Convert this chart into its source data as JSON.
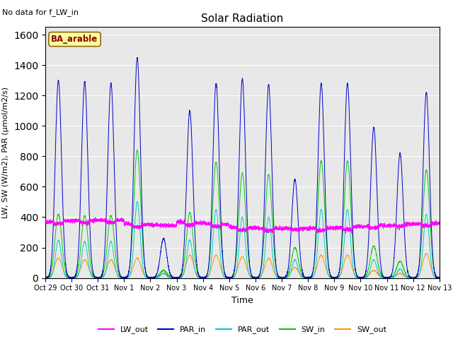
{
  "title": "Solar Radiation",
  "subtitle": "No data for f_LW_in",
  "site_label": "BA_arable",
  "xlabel": "Time",
  "ylabel": "LW, SW (W/m2), PAR (μmol/m2/s)",
  "ylim": [
    0,
    1650
  ],
  "yticks": [
    0,
    200,
    400,
    600,
    800,
    1000,
    1200,
    1400,
    1600
  ],
  "colors": {
    "LW_out": "#ff00ff",
    "PAR_in": "#0000cc",
    "PAR_out": "#00cccc",
    "SW_in": "#00cc00",
    "SW_out": "#ff9900"
  },
  "background_color": "#e8e8e8",
  "num_days": 15,
  "num_points_per_day": 288,
  "day_labels": [
    "Oct 29",
    "Oct 30",
    "Oct 31",
    "Nov 1",
    "Nov 2",
    "Nov 3",
    "Nov 4",
    "Nov 5",
    "Nov 6",
    "Nov 7",
    "Nov 8",
    "Nov 9",
    "Nov 10",
    "Nov 11",
    "Nov 12",
    "Nov 13"
  ],
  "PAR_in_peaks": [
    1300,
    1290,
    1280,
    1450,
    260,
    1100,
    1280,
    1310,
    1270,
    650,
    1280,
    1280,
    990,
    820,
    1220,
    0
  ],
  "SW_in_peaks": [
    420,
    410,
    410,
    840,
    50,
    430,
    760,
    690,
    680,
    200,
    770,
    770,
    210,
    110,
    710,
    0
  ],
  "PAR_out_peaks": [
    250,
    240,
    240,
    500,
    30,
    250,
    450,
    400,
    400,
    120,
    450,
    450,
    120,
    60,
    420,
    0
  ],
  "SW_out_peaks": [
    130,
    120,
    120,
    130,
    30,
    150,
    150,
    140,
    130,
    70,
    150,
    150,
    50,
    30,
    160,
    0
  ],
  "LW_out_base": 360,
  "LW_out_variation": 40
}
